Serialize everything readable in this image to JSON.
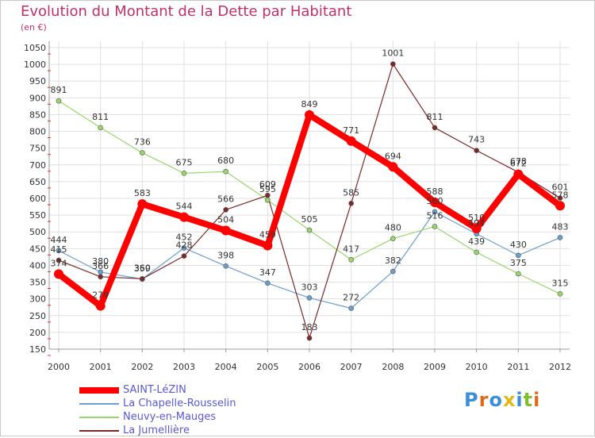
{
  "title": "Evolution du Montant de la Dette par Habitant",
  "subtitle": "(en €)",
  "logo_text": "Proxiti",
  "chart_data": {
    "type": "line",
    "x": [
      "2000",
      "2001",
      "2002",
      "2003",
      "2004",
      "2005",
      "2006",
      "2007",
      "2008",
      "2009",
      "2010",
      "2011",
      "2012"
    ],
    "ylim": [
      150,
      1050
    ],
    "yticks": [
      150,
      200,
      250,
      300,
      350,
      400,
      450,
      500,
      550,
      600,
      650,
      700,
      750,
      800,
      850,
      900,
      950,
      1000,
      1050
    ],
    "grid": true,
    "legend_position": "bottom-left",
    "series": [
      {
        "name": "SAINT-LéZIN",
        "color": "#ff0000",
        "values": [
          374,
          279,
          583,
          544,
          504,
          459,
          849,
          771,
          694,
          588,
          510,
          672,
          578
        ]
      },
      {
        "name": "La Chapelle-Rousselin",
        "color": "#6b9fd0",
        "values": [
          444,
          380,
          359,
          452,
          398,
          347,
          303,
          272,
          382,
          560,
          494,
          430,
          483
        ]
      },
      {
        "name": "Neuvy-en-Mauges",
        "color": "#99d66b",
        "values": [
          891,
          811,
          736,
          675,
          680,
          595,
          505,
          417,
          480,
          516,
          439,
          375,
          315
        ]
      },
      {
        "name": "La Jumellière",
        "color": "#7b2a2a",
        "values": [
          415,
          366,
          360,
          428,
          566,
          609,
          183,
          585,
          1001,
          811,
          743,
          678,
          601
        ]
      }
    ]
  }
}
